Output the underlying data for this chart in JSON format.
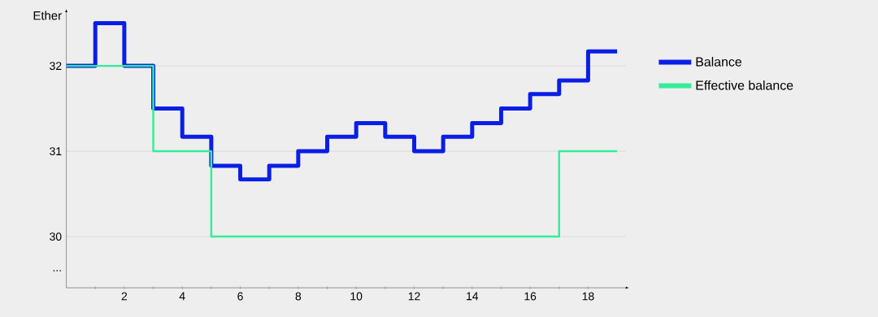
{
  "chart_data": {
    "type": "step",
    "ylabel": "Ether",
    "x": [
      0,
      1,
      2,
      3,
      4,
      5,
      6,
      7,
      8,
      9,
      10,
      11,
      12,
      13,
      14,
      15,
      16,
      17,
      18,
      19
    ],
    "series": [
      {
        "name": "Balance",
        "color": "#0a1ee6",
        "values": [
          32,
          32.5,
          32,
          31.5,
          31.17,
          30.83,
          30.67,
          30.83,
          31,
          31.17,
          31.33,
          31.17,
          31,
          31.17,
          31.33,
          31.5,
          31.67,
          31.83,
          32.17,
          32.17
        ]
      },
      {
        "name": "Effective balance",
        "color": "#33ee99",
        "values": [
          32,
          32,
          32,
          31,
          31,
          30,
          30,
          30,
          30,
          30,
          30,
          30,
          30,
          30,
          30,
          30,
          30,
          31,
          31,
          31
        ]
      }
    ],
    "xlim": [
      0,
      19.3
    ],
    "ylim": [
      29.4,
      32.63
    ],
    "xticks": [
      {
        "value": 1,
        "label": null
      },
      2,
      {
        "value": 3,
        "label": null
      },
      4,
      {
        "value": 5,
        "label": null
      },
      6,
      {
        "value": 7,
        "label": null
      },
      8,
      {
        "value": 9,
        "label": null
      },
      10,
      {
        "value": 11,
        "label": null
      },
      12,
      {
        "value": 13,
        "label": null
      },
      14,
      {
        "value": 15,
        "label": null
      },
      16,
      {
        "value": 17,
        "label": null
      },
      18
    ],
    "yticks": [
      {
        "value": 29.6,
        "label": "..."
      },
      30,
      31,
      32
    ],
    "grid": "y",
    "legend": "right"
  }
}
